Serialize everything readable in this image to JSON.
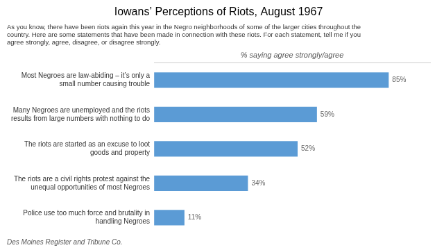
{
  "chart_data": {
    "type": "bar",
    "orientation": "horizontal",
    "title": "Iowans’ Perceptions of Riots, August 1967",
    "subtitle": "As you know, there have been riots again this year in the Negro neighborhoods of some of the larger cities throughout the\ncountry. Here are some statements that have been made in connection with these riots. For each statement, tell me if you\nagree strongly, agree, disagree, or disagree strongly.",
    "xlabel": "% saying agree strongly/agree",
    "annotations": [
      "Des Moines Register and Tribune Co."
    ],
    "categories": [
      "Most Negroes are law-abiding – it’s only a\nsmall number causing trouble",
      "Many Negroes are unemployed and the riots\nresults from large numbers with nothing to do",
      "The riots are started as an excuse to loot\ngoods and property",
      "The riots are a civil rights protest against the\nunequal opportunities of most Negroes",
      "Police use too much force and brutality in\nhandling Negroes"
    ],
    "values": [
      85,
      59,
      52,
      34,
      11
    ],
    "value_labels": [
      "85%",
      "59%",
      "52%",
      "34%",
      "11%"
    ],
    "data_labels": true,
    "color": "#5b9bd5",
    "xlim": [
      0,
      100
    ],
    "grid": false,
    "tick_labels": "y"
  }
}
